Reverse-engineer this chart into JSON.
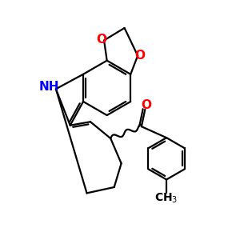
{
  "background_color": "#ffffff",
  "atom_colors": {
    "O": "#ff0000",
    "N": "#0000ff",
    "C": "#000000"
  },
  "bond_color": "#000000",
  "bond_width": 1.6,
  "figsize": [
    3.0,
    3.0
  ],
  "dpi": 100,
  "xlim": [
    0,
    10
  ],
  "ylim": [
    0,
    10
  ],
  "font_size_atom": 11,
  "font_size_ch3": 10
}
